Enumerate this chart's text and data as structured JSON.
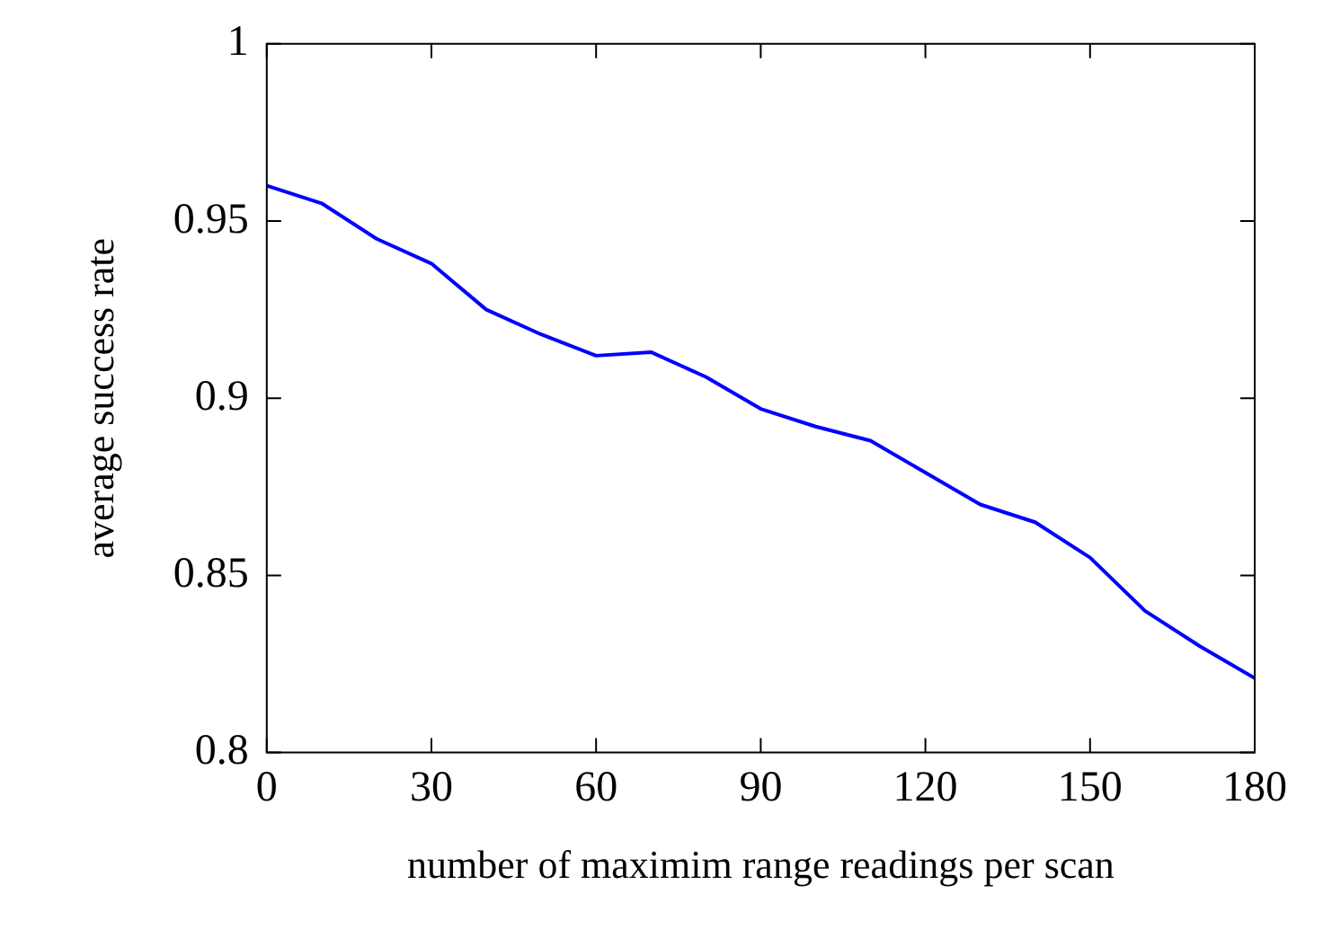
{
  "chart_data": {
    "type": "line",
    "xlabel": "number of maximim range readings per scan",
    "ylabel": "average success rate",
    "x": [
      0,
      10,
      20,
      30,
      40,
      50,
      60,
      70,
      80,
      90,
      100,
      110,
      120,
      130,
      140,
      150,
      160,
      170,
      180
    ],
    "series": [
      {
        "color": "#0000ff",
        "values": [
          0.96,
          0.955,
          0.945,
          0.938,
          0.925,
          0.918,
          0.912,
          0.913,
          0.906,
          0.897,
          0.892,
          0.888,
          0.879,
          0.87,
          0.865,
          0.855,
          0.84,
          0.83,
          0.821
        ]
      }
    ],
    "xlim": [
      0,
      180
    ],
    "xticks": [
      0,
      30,
      60,
      90,
      120,
      150,
      180
    ],
    "ylim": [
      0.8,
      1
    ],
    "yticks": [
      0.8,
      0.85,
      0.9,
      0.95,
      1
    ],
    "grid": false,
    "legend": false,
    "marker": "none",
    "line_style": "solid"
  }
}
